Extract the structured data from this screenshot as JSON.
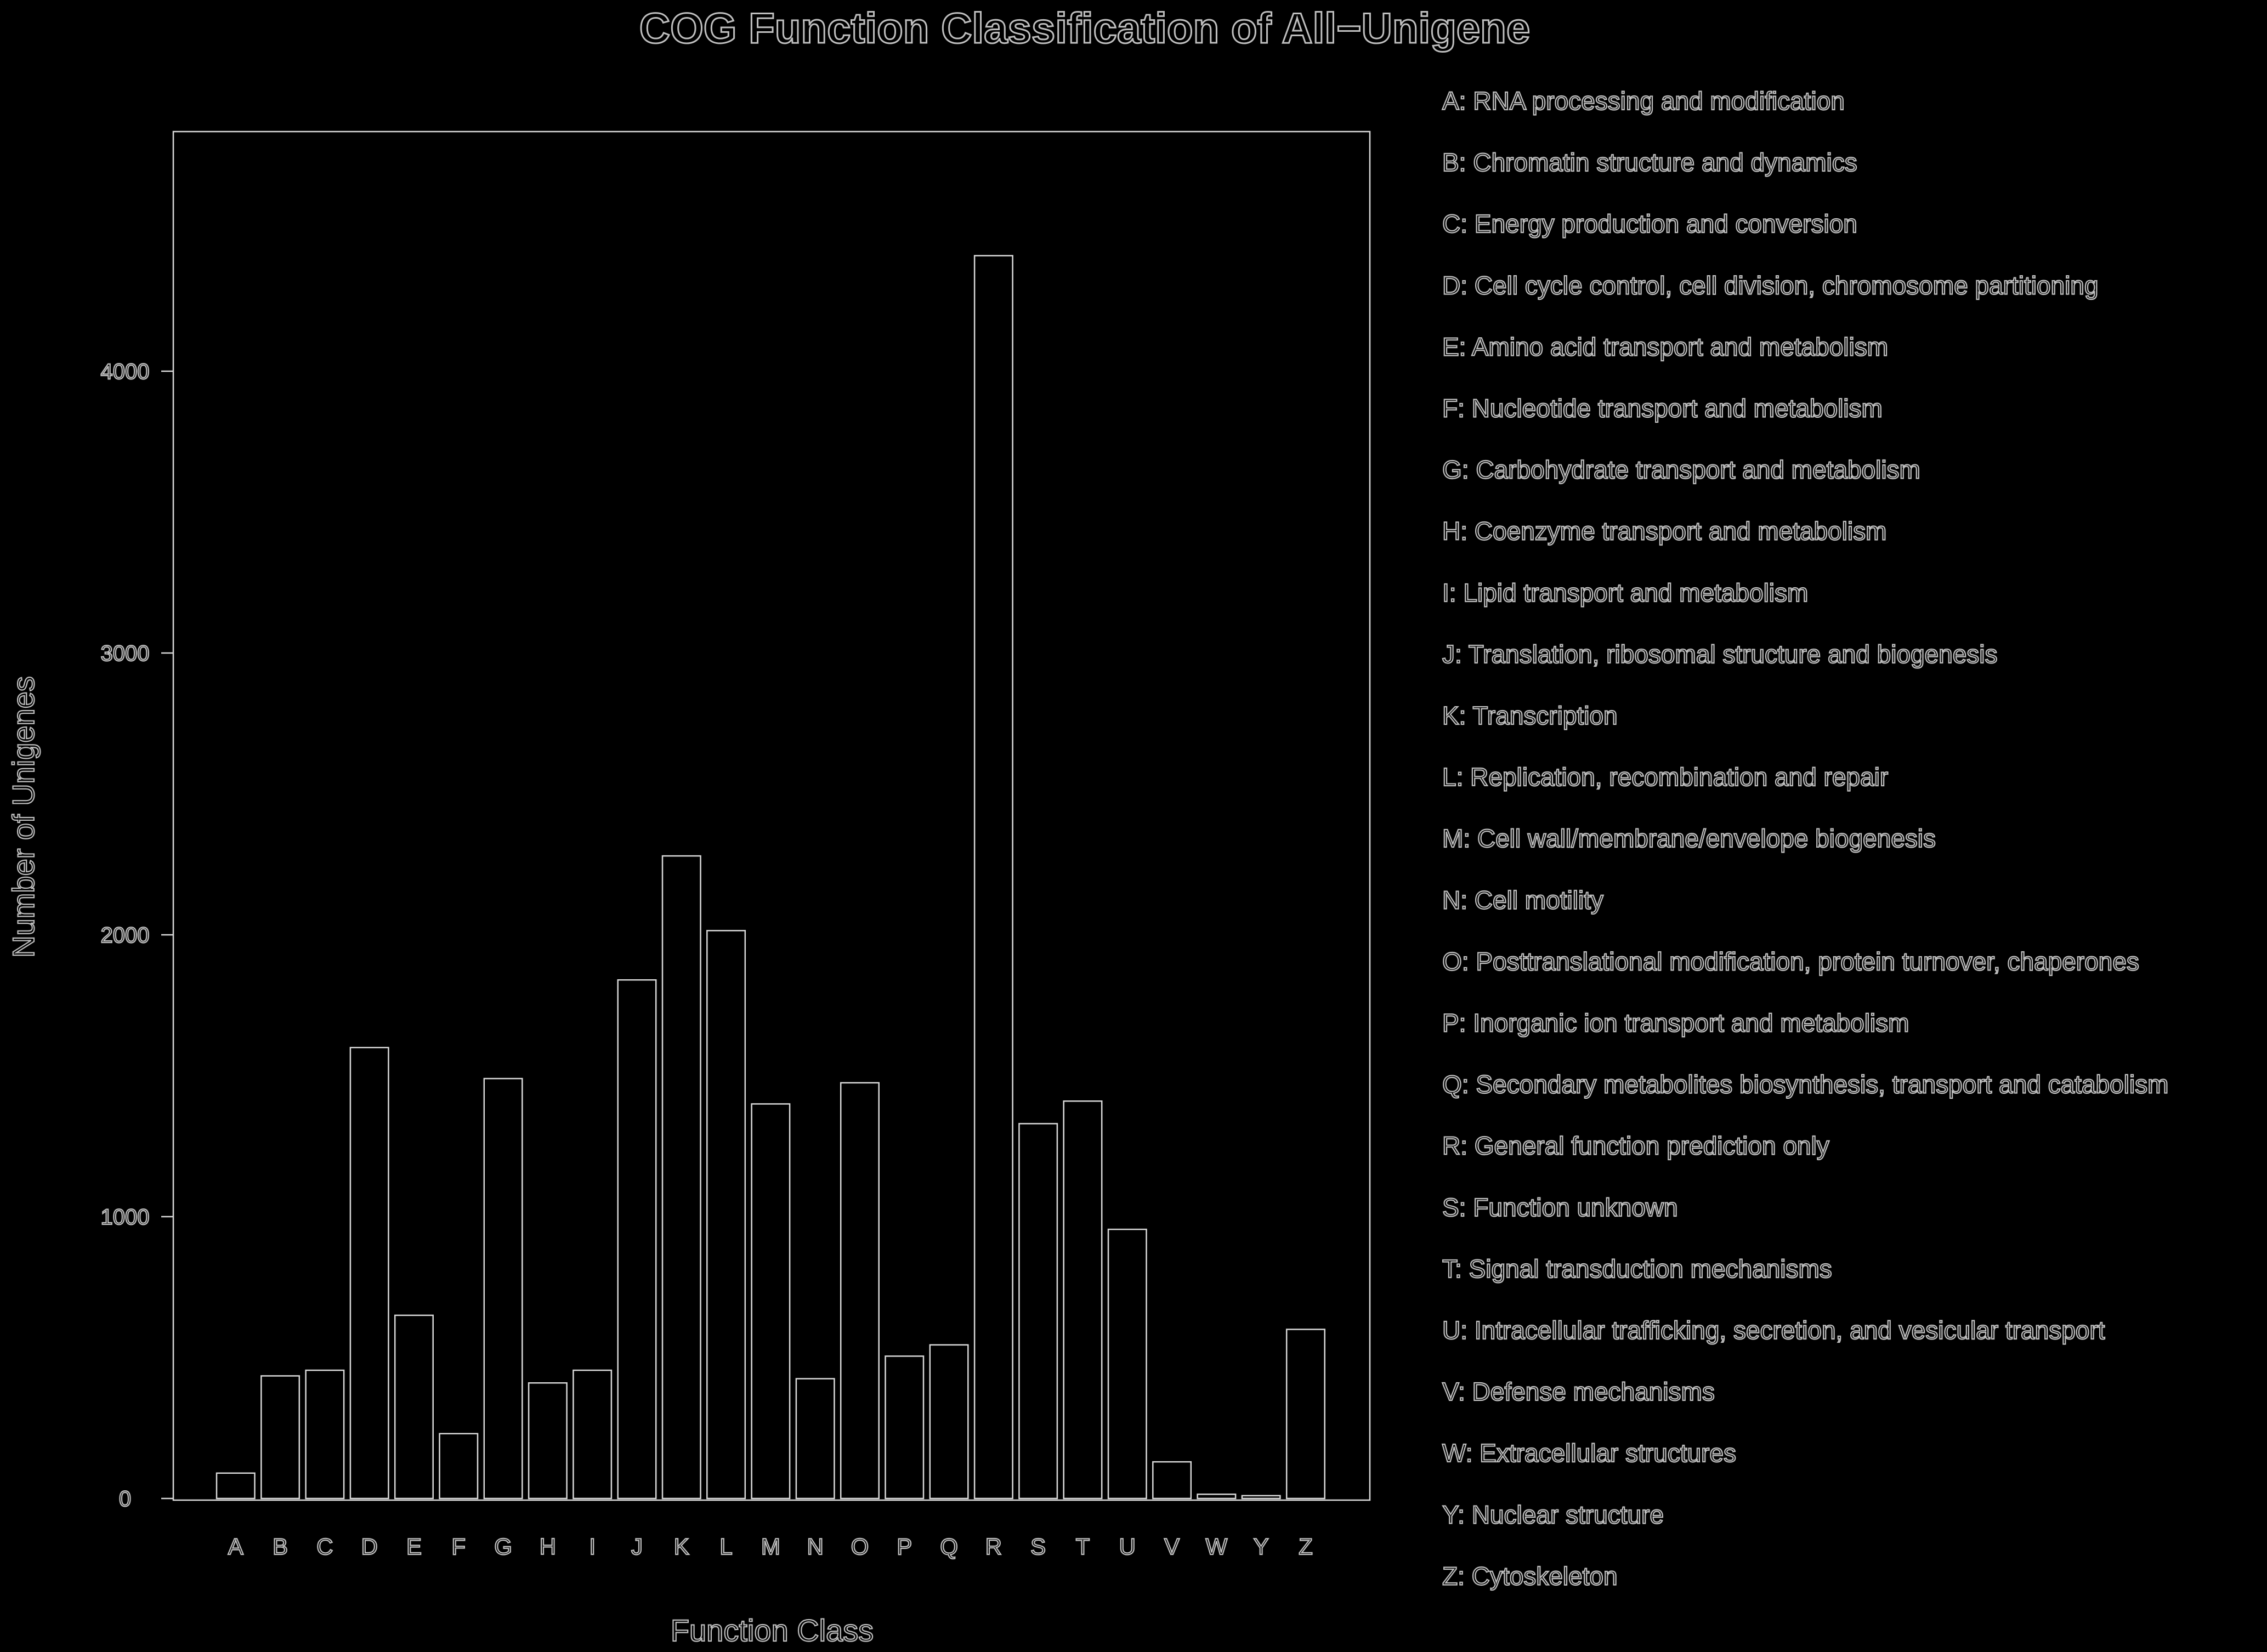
{
  "chart_data": {
    "type": "bar",
    "title": "COG Function Classification of All−Unigene",
    "xlabel": "Function Class",
    "ylabel": "Number of Unigenes",
    "ylim": [
      0,
      4850
    ],
    "yticks": [
      0,
      1000,
      2000,
      3000,
      4000
    ],
    "categories": [
      "A",
      "B",
      "C",
      "D",
      "E",
      "F",
      "G",
      "H",
      "I",
      "J",
      "K",
      "L",
      "M",
      "N",
      "O",
      "P",
      "Q",
      "R",
      "S",
      "T",
      "U",
      "V",
      "W",
      "Y",
      "Z"
    ],
    "values": [
      90,
      435,
      455,
      1600,
      650,
      230,
      1490,
      410,
      455,
      1840,
      2280,
      2015,
      1400,
      425,
      1475,
      505,
      545,
      4410,
      1330,
      1410,
      955,
      130,
      15,
      10,
      600
    ],
    "legend": [
      "A: RNA processing and modification",
      "B: Chromatin structure and dynamics",
      "C: Energy production and conversion",
      "D: Cell cycle control, cell division, chromosome partitioning",
      "E: Amino acid transport and metabolism",
      "F: Nucleotide transport and metabolism",
      "G: Carbohydrate transport and metabolism",
      "H: Coenzyme transport and metabolism",
      "I: Lipid transport and metabolism",
      "J: Translation, ribosomal structure and biogenesis",
      "K: Transcription",
      "L: Replication, recombination and repair",
      "M: Cell wall/membrane/envelope biogenesis",
      "N: Cell motility",
      "O: Posttranslational modification, protein turnover, chaperones",
      "P: Inorganic ion transport and metabolism",
      "Q: Secondary metabolites biosynthesis, transport and catabolism",
      "R: General function prediction only",
      "S: Function unknown",
      "T: Signal transduction mechanisms",
      "U: Intracellular trafficking, secretion, and vesicular transport",
      "V: Defense mechanisms",
      "W: Extracellular structures",
      "Y: Nuclear structure",
      "Z: Cytoskeleton"
    ],
    "legend_position": "right",
    "grid": false,
    "colors": {
      "background": "#000000",
      "stroke": "#d9d9d9",
      "text": "#bfbfbf"
    }
  }
}
